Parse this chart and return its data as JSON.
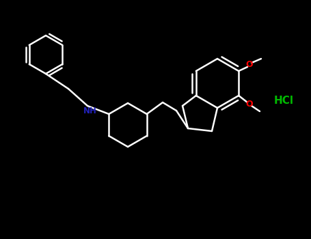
{
  "background": "#000000",
  "bond_color": "#ffffff",
  "N_color": "#2222bb",
  "O_color": "#ff0000",
  "Cl_color": "#00bb00",
  "HCl_color": "#00bb00",
  "lw": 1.8,
  "atoms": {
    "N": {
      "label": "NH",
      "color": "#2222bb"
    },
    "O1": {
      "label": "O",
      "color": "#ff0000"
    },
    "O2": {
      "label": "O",
      "color": "#ff0000"
    },
    "HCl": {
      "label": "HCl",
      "color": "#00bb00"
    }
  },
  "figsize": [
    4.55,
    3.5
  ],
  "dpi": 100
}
